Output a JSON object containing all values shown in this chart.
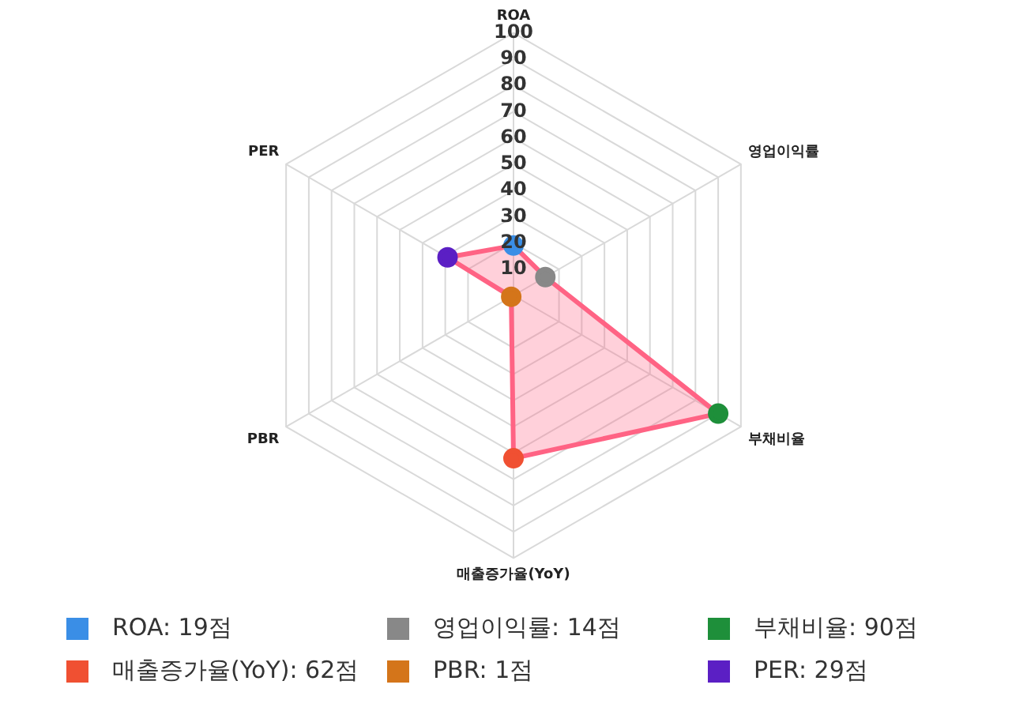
{
  "chart_data": {
    "type": "radar",
    "categories": [
      "ROA",
      "영업이익률",
      "부채비율",
      "매출증가율(YoY)",
      "PBR",
      "PER"
    ],
    "series": [
      {
        "color": "#ff6384",
        "colors": [
          "#3a8ee6",
          "#888888",
          "#1e8f3a",
          "#f05032",
          "#d4751a",
          "#5b1fc4"
        ],
        "values": [
          19,
          14,
          90,
          62,
          1,
          29
        ]
      }
    ],
    "annotations": [
      "ROA: 19점",
      "영업이익률: 14점",
      "부채비율: 90점",
      "매출증가율(YoY): 62점",
      "PBR: 1점",
      "PER: 29점"
    ],
    "ylim": [
      0,
      100
    ],
    "yticks": [
      10,
      20,
      30,
      40,
      50,
      60,
      70,
      80,
      90,
      100
    ],
    "grid": true,
    "marker": "circle"
  }
}
